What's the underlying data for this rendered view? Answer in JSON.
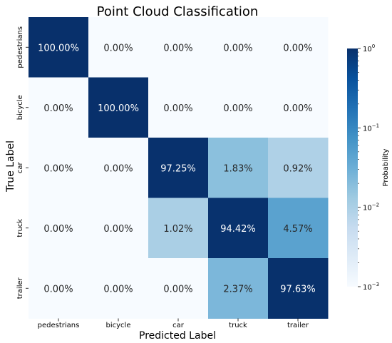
{
  "chart_data": {
    "type": "heatmap",
    "title": "Point Cloud Classification",
    "xlabel": "Predicted Label",
    "ylabel": "True Label",
    "x_categories": [
      "pedestrians",
      "bicycle",
      "car",
      "truck",
      "trailer"
    ],
    "y_categories": [
      "pedestrians",
      "bicycle",
      "car",
      "truck",
      "trailer"
    ],
    "values": [
      [
        100.0,
        0.0,
        0.0,
        0.0,
        0.0
      ],
      [
        0.0,
        100.0,
        0.0,
        0.0,
        0.0
      ],
      [
        0.0,
        0.0,
        97.25,
        1.83,
        0.92
      ],
      [
        0.0,
        0.0,
        1.02,
        94.42,
        4.57
      ],
      [
        0.0,
        0.0,
        0.0,
        2.37,
        97.63
      ]
    ],
    "value_labels": [
      [
        "100.00%",
        "0.00%",
        "0.00%",
        "0.00%",
        "0.00%"
      ],
      [
        "0.00%",
        "100.00%",
        "0.00%",
        "0.00%",
        "0.00%"
      ],
      [
        "0.00%",
        "0.00%",
        "97.25%",
        "1.83%",
        "0.92%"
      ],
      [
        "0.00%",
        "0.00%",
        "1.02%",
        "94.42%",
        "4.57%"
      ],
      [
        "0.00%",
        "0.00%",
        "0.00%",
        "2.37%",
        "97.63%"
      ]
    ],
    "colorbar": {
      "label": "Probability",
      "scale": "log",
      "range": [
        0.001,
        1
      ],
      "colormap": "Blues",
      "ticks": [
        {
          "base": "10",
          "exp": "0",
          "value": 1
        },
        {
          "base": "10",
          "exp": "−1",
          "value": 0.1
        },
        {
          "base": "10",
          "exp": "−2",
          "value": 0.01
        },
        {
          "base": "10",
          "exp": "−3",
          "value": 0.001
        }
      ]
    }
  }
}
